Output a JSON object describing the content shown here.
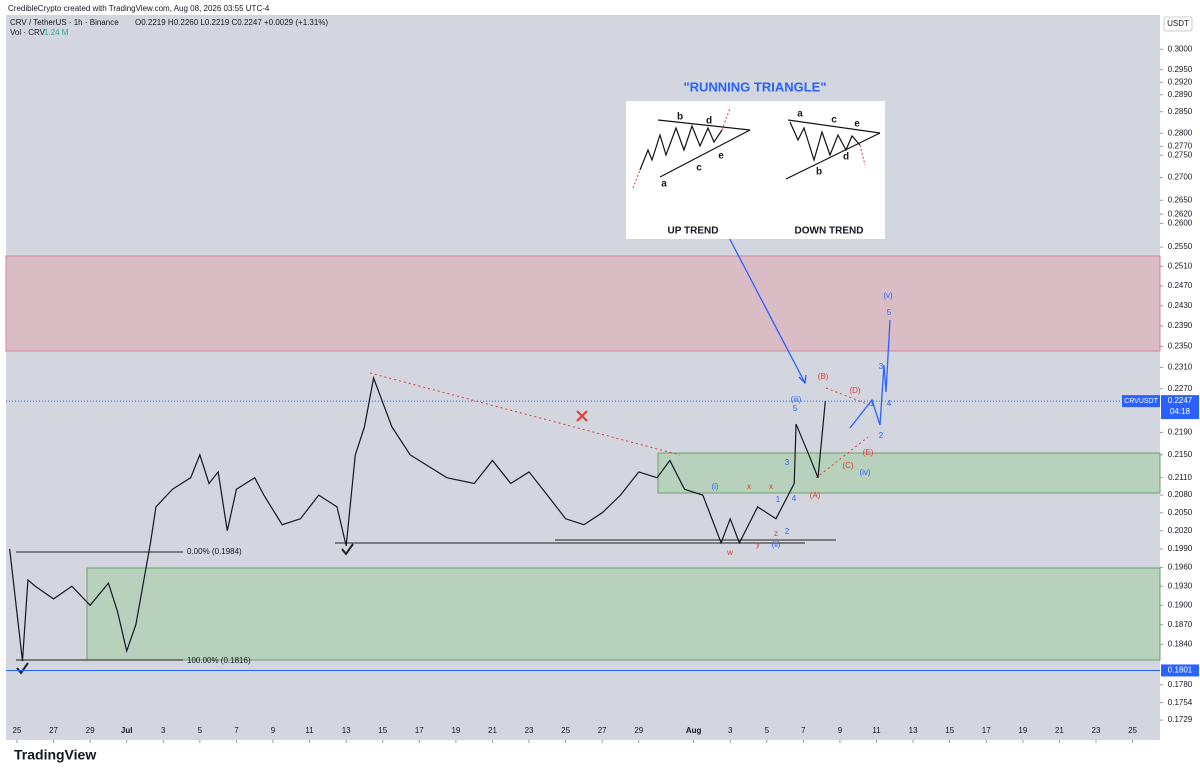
{
  "header": {
    "credit": "CredibleCrypto created with TradingView.com, Aug 08, 2026 03:55 UTC-4",
    "symbol": "CRV / TetherUS · 1h · Binance",
    "ohlc": "O0.2219 H0.2260 L0.2219 C0.2247 +0.0029 (+1.31%)",
    "volume": "Vol · CRV",
    "volume_value": "1.24 M",
    "currency": "USDT"
  },
  "footer": {
    "brand": "TradingView"
  },
  "chart_data": {
    "type": "line",
    "log_scale": true,
    "color": "#131722",
    "x": [
      -0.4,
      0.3,
      0.6,
      1,
      2,
      3,
      4,
      5,
      5.5,
      6,
      6.5,
      7,
      7.3,
      7.6,
      8.5,
      9.5,
      10,
      10.5,
      11,
      11.5,
      12,
      13,
      13.5,
      14.5,
      15.5,
      16.5,
      17.5,
      18,
      18.5,
      19,
      19.5,
      20.5,
      21.5,
      22.5,
      23.5,
      25,
      26,
      27,
      28,
      29,
      30,
      31,
      32,
      33,
      34,
      35,
      35.7,
      36.5,
      37.5,
      38,
      38.5,
      39,
      39.5,
      40.5,
      41.5,
      42.5,
      42.6,
      43.3,
      43.8,
      44.2
    ],
    "values": [
      0.199,
      0.1815,
      0.194,
      0.193,
      0.191,
      0.193,
      0.19,
      0.1935,
      0.189,
      0.183,
      0.187,
      0.195,
      0.2,
      0.206,
      0.209,
      0.211,
      0.215,
      0.21,
      0.212,
      0.202,
      0.209,
      0.211,
      0.208,
      0.203,
      0.204,
      0.208,
      0.206,
      0.1995,
      0.215,
      0.22,
      0.229,
      0.22,
      0.215,
      0.213,
      0.211,
      0.21,
      0.214,
      0.21,
      0.212,
      0.208,
      0.204,
      0.203,
      0.205,
      0.208,
      0.212,
      0.211,
      0.214,
      0.209,
      0.208,
      0.204,
      0.2,
      0.204,
      0.2,
      0.206,
      0.204,
      0.21,
      0.2205,
      0.215,
      0.211,
      0.2247
    ],
    "xlim": [
      -0.6,
      62.5
    ],
    "ylim": [
      0.1701,
      0.3073
    ],
    "xticks": [
      {
        "value": 0,
        "label": "25"
      },
      {
        "value": 2,
        "label": "27"
      },
      {
        "value": 4,
        "label": "29"
      },
      {
        "value": 6,
        "label": "Jul"
      },
      {
        "value": 8,
        "label": "3"
      },
      {
        "value": 10,
        "label": "5"
      },
      {
        "value": 12,
        "label": "7"
      },
      {
        "value": 14,
        "label": "9"
      },
      {
        "value": 16,
        "label": "11"
      },
      {
        "value": 18,
        "label": "13"
      },
      {
        "value": 20,
        "label": "15"
      },
      {
        "value": 22,
        "label": "17"
      },
      {
        "value": 24,
        "label": "19"
      },
      {
        "value": 26,
        "label": "21"
      },
      {
        "value": 28,
        "label": "23"
      },
      {
        "value": 30,
        "label": "25"
      },
      {
        "value": 32,
        "label": "27"
      },
      {
        "value": 34,
        "label": "29"
      },
      {
        "value": 37,
        "label": "Aug"
      },
      {
        "value": 39,
        "label": "3"
      },
      {
        "value": 41,
        "label": "5"
      },
      {
        "value": 43,
        "label": "7"
      },
      {
        "value": 45,
        "label": "9"
      },
      {
        "value": 47,
        "label": "11"
      },
      {
        "value": 49,
        "label": "13"
      },
      {
        "value": 51,
        "label": "15"
      },
      {
        "value": 53,
        "label": "17"
      },
      {
        "value": 55,
        "label": "19"
      },
      {
        "value": 57,
        "label": "21"
      },
      {
        "value": 59,
        "label": "23"
      },
      {
        "value": 61,
        "label": "25"
      }
    ],
    "yticks": [
      {
        "value": 0.3,
        "label": "0.3000"
      },
      {
        "value": 0.295,
        "label": "0.2950"
      },
      {
        "value": 0.292,
        "label": "0.2920"
      },
      {
        "value": 0.289,
        "label": "0.2890"
      },
      {
        "value": 0.285,
        "label": "0.2850"
      },
      {
        "value": 0.28,
        "label": "0.2800"
      },
      {
        "value": 0.277,
        "label": "0.2770"
      },
      {
        "value": 0.275,
        "label": "0.2750"
      },
      {
        "value": 0.27,
        "label": "0.2700"
      },
      {
        "value": 0.265,
        "label": "0.2650"
      },
      {
        "value": 0.262,
        "label": "0.2620"
      },
      {
        "value": 0.26,
        "label": "0.2600"
      },
      {
        "value": 0.255,
        "label": "0.2550"
      },
      {
        "value": 0.251,
        "label": "0.2510"
      },
      {
        "value": 0.247,
        "label": "0.2470"
      },
      {
        "value": 0.243,
        "label": "0.2430"
      },
      {
        "value": 0.239,
        "label": "0.2390"
      },
      {
        "value": 0.235,
        "label": "0.2350"
      },
      {
        "value": 0.231,
        "label": "0.2310"
      },
      {
        "value": 0.227,
        "label": "0.2270"
      },
      {
        "value": 0.219,
        "label": "0.2190"
      },
      {
        "value": 0.215,
        "label": "0.2150"
      },
      {
        "value": 0.211,
        "label": "0.2110"
      },
      {
        "value": 0.208,
        "label": "0.2080"
      },
      {
        "value": 0.205,
        "label": "0.2050"
      },
      {
        "value": 0.202,
        "label": "0.2020"
      },
      {
        "value": 0.199,
        "label": "0.1990"
      },
      {
        "value": 0.196,
        "label": "0.1960"
      },
      {
        "value": 0.193,
        "label": "0.1930"
      },
      {
        "value": 0.19,
        "label": "0.1900"
      },
      {
        "value": 0.187,
        "label": "0.1870"
      },
      {
        "value": 0.184,
        "label": "0.1840"
      },
      {
        "value": 0.178,
        "label": "0.1780"
      },
      {
        "value": 0.1754,
        "label": "0.1754"
      },
      {
        "value": 0.1729,
        "label": "0.1729"
      }
    ],
    "last_price": {
      "value": 0.2247,
      "label": "0.2247",
      "symbol": "CRVUSDT",
      "countdown": "04:18"
    },
    "level": {
      "value": 0.1801,
      "label": "0.1801"
    },
    "fib": [
      "0.00% (0.1984)",
      "100.00% (0.1816)"
    ],
    "inset": {
      "title": "\"RUNNING TRIANGLE\"",
      "up": "UP TREND",
      "down": "DOWN TREND",
      "up_letters": [
        "a",
        "b",
        "c",
        "d",
        "e"
      ],
      "down_letters": [
        "a",
        "b",
        "c",
        "d",
        "e"
      ]
    },
    "blue_waves": [
      "(i)",
      "(ii)",
      "(iii)",
      "(iv)",
      "(v)",
      "1",
      "2",
      "3",
      "4",
      "5",
      "1",
      "2",
      "3",
      "4",
      "5"
    ],
    "red_waves": [
      "w",
      "x",
      "y",
      "x",
      "z",
      "(A)",
      "(B)",
      "(C)",
      "(D)",
      "(E)"
    ]
  }
}
